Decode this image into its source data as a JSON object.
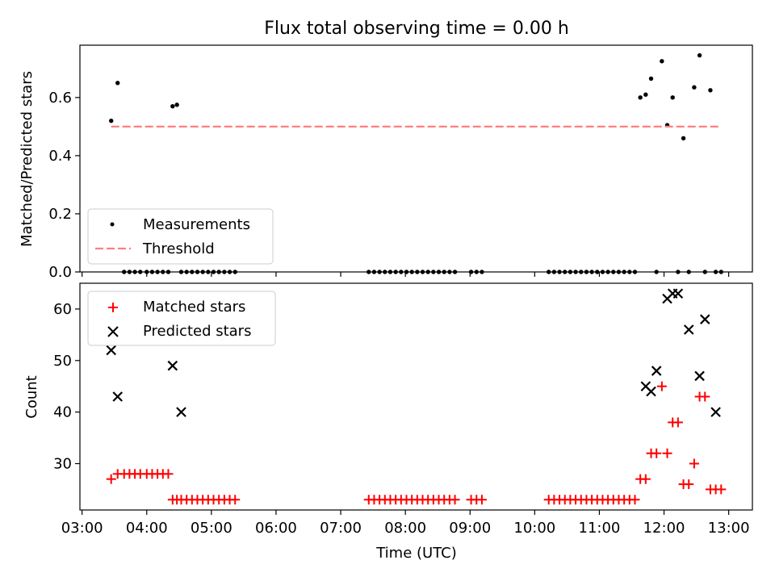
{
  "figure": {
    "title": "Flux total observing time = 0.00 h"
  },
  "chart_data": [
    {
      "type": "scatter",
      "panel": "top",
      "title": "Flux total observing time = 0.00 h",
      "xlabel": "",
      "ylabel": "Matched/Predicted stars",
      "xlim": [
        "02:58",
        "13:22"
      ],
      "ylim": [
        0,
        0.78
      ],
      "yticks": [
        0.0,
        0.2,
        0.4,
        0.6
      ],
      "ytick_labels": [
        "0.0",
        "0.2",
        "0.4",
        "0.6"
      ],
      "legend": {
        "placement": "lower-left"
      },
      "series": [
        {
          "name": "Measurements",
          "kind": "scatter",
          "color": "#000000",
          "marker": "dot",
          "x": [
            "03:27",
            "03:33",
            "03:39",
            "03:44",
            "03:49",
            "03:54",
            "04:00",
            "04:05",
            "04:10",
            "04:15",
            "04:20",
            "04:24",
            "04:28",
            "04:32",
            "04:37",
            "04:42",
            "04:47",
            "04:52",
            "04:57",
            "05:02",
            "05:07",
            "05:12",
            "05:17",
            "05:22",
            "07:26",
            "07:31",
            "07:36",
            "07:41",
            "07:46",
            "07:51",
            "07:56",
            "08:01",
            "08:06",
            "08:11",
            "08:16",
            "08:21",
            "08:26",
            "08:31",
            "08:36",
            "08:41",
            "08:46",
            "09:01",
            "09:06",
            "09:11",
            "10:13",
            "10:18",
            "10:23",
            "10:28",
            "10:33",
            "10:38",
            "10:43",
            "10:48",
            "10:53",
            "10:58",
            "11:03",
            "11:08",
            "11:13",
            "11:18",
            "11:23",
            "11:28",
            "11:33",
            "11:38",
            "11:43",
            "11:48",
            "11:53",
            "11:58",
            "12:03",
            "12:08",
            "12:13",
            "12:18",
            "12:23",
            "12:28",
            "12:33",
            "12:38",
            "12:43",
            "12:48",
            "12:53"
          ],
          "y": [
            0.52,
            0.65,
            0,
            0,
            0,
            0,
            0,
            0,
            0,
            0,
            0,
            0.57,
            0.575,
            0,
            0,
            0,
            0,
            0,
            0,
            0,
            0,
            0,
            0,
            0,
            0,
            0,
            0,
            0,
            0,
            0,
            0,
            0,
            0,
            0,
            0,
            0,
            0,
            0,
            0,
            0,
            0,
            0,
            0,
            0,
            0,
            0,
            0,
            0,
            0,
            0,
            0,
            0,
            0,
            0,
            0,
            0,
            0,
            0,
            0,
            0,
            0,
            0.6,
            0.61,
            0.665,
            0,
            0.725,
            0.505,
            0.6,
            0,
            0.46,
            0,
            0.635,
            0.745,
            0,
            0.625,
            0,
            0
          ]
        },
        {
          "name": "Threshold",
          "kind": "line",
          "style": "dashed",
          "color": "#ff7f7f",
          "x": [
            "03:27",
            "12:53"
          ],
          "y": [
            0.5,
            0.5
          ]
        }
      ]
    },
    {
      "type": "scatter",
      "panel": "bottom",
      "xlabel": "Time (UTC)",
      "ylabel": "Count",
      "xlim": [
        "02:58",
        "13:22"
      ],
      "xticks": [
        "03:00",
        "04:00",
        "05:00",
        "06:00",
        "07:00",
        "08:00",
        "09:00",
        "10:00",
        "11:00",
        "12:00",
        "13:00"
      ],
      "ylim": [
        21,
        65
      ],
      "yticks": [
        30,
        40,
        50,
        60
      ],
      "legend": {
        "placement": "top-left"
      },
      "series": [
        {
          "name": "Matched stars",
          "color": "#ff0000",
          "marker": "plus",
          "x": [
            "03:27",
            "03:33",
            "03:39",
            "03:44",
            "03:49",
            "03:54",
            "04:00",
            "04:05",
            "04:10",
            "04:15",
            "04:20",
            "04:24",
            "04:28",
            "04:32",
            "04:37",
            "04:42",
            "04:47",
            "04:52",
            "04:57",
            "05:02",
            "05:07",
            "05:12",
            "05:17",
            "05:22",
            "07:26",
            "07:31",
            "07:36",
            "07:41",
            "07:46",
            "07:51",
            "07:56",
            "08:01",
            "08:06",
            "08:11",
            "08:16",
            "08:21",
            "08:26",
            "08:31",
            "08:36",
            "08:41",
            "08:46",
            "09:01",
            "09:06",
            "09:11",
            "10:13",
            "10:18",
            "10:23",
            "10:28",
            "10:33",
            "10:38",
            "10:43",
            "10:48",
            "10:53",
            "10:58",
            "11:03",
            "11:08",
            "11:13",
            "11:18",
            "11:23",
            "11:28",
            "11:33",
            "11:38",
            "11:43",
            "11:48",
            "11:53",
            "11:58",
            "12:03",
            "12:08",
            "12:13",
            "12:18",
            "12:23",
            "12:28",
            "12:33",
            "12:38",
            "12:43",
            "12:48",
            "12:53"
          ],
          "y": [
            27,
            28,
            28,
            28,
            28,
            28,
            28,
            28,
            28,
            28,
            28,
            23,
            23,
            23,
            23,
            23,
            23,
            23,
            23,
            23,
            23,
            23,
            23,
            23,
            23,
            23,
            23,
            23,
            23,
            23,
            23,
            23,
            23,
            23,
            23,
            23,
            23,
            23,
            23,
            23,
            23,
            23,
            23,
            23,
            23,
            23,
            23,
            23,
            23,
            23,
            23,
            23,
            23,
            23,
            23,
            23,
            23,
            23,
            23,
            23,
            23,
            27,
            27,
            32,
            32,
            45,
            32,
            38,
            38,
            26,
            26,
            30,
            43,
            43,
            25,
            25,
            25
          ]
        },
        {
          "name": "Predicted stars",
          "color": "#000000",
          "marker": "x",
          "x": [
            "03:27",
            "03:33",
            "04:24",
            "04:32",
            "11:43",
            "11:48",
            "11:53",
            "12:03",
            "12:08",
            "12:13",
            "12:23",
            "12:33",
            "12:38",
            "12:48"
          ],
          "y": [
            52,
            43,
            49,
            40,
            45,
            44,
            48,
            62,
            63,
            63,
            56,
            47,
            58,
            40
          ]
        }
      ]
    }
  ]
}
